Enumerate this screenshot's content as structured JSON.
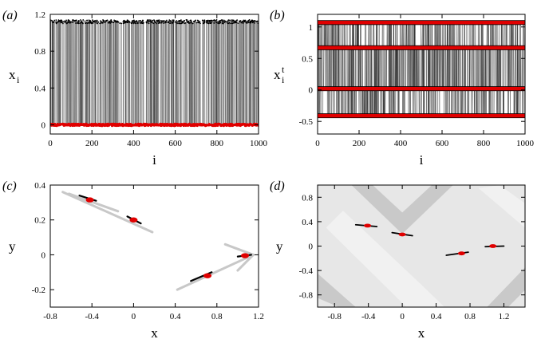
{
  "chart_data": [
    {
      "id": "a",
      "panel_label": "(a)",
      "type": "scatter",
      "xlabel": "i",
      "ylabel": {
        "main": "x",
        "sub": "i"
      },
      "xlim": [
        0,
        1000
      ],
      "ylim": [
        -0.1,
        1.2
      ],
      "xticks": [
        0,
        200,
        400,
        600,
        800,
        1000
      ],
      "xtick_labels": [
        "0",
        "200",
        "400",
        "600",
        "800",
        "1000"
      ],
      "yticks": [
        0,
        0.4,
        0.8,
        1.2
      ],
      "ytick_labels": [
        "0",
        "0.4",
        "0.8",
        "1.2"
      ],
      "series": [
        {
          "name": "upper band",
          "color": "#000000",
          "level": 1.12,
          "spread": 0.04
        },
        {
          "name": "lower band",
          "color": "#e00000",
          "level": 0.0,
          "spread": 0.02
        }
      ],
      "n_points": 1000
    },
    {
      "id": "b",
      "panel_label": "(b)",
      "type": "scatter",
      "xlabel": "i",
      "ylabel": {
        "main": "x",
        "sup": "t",
        "sub": "i"
      },
      "xlim": [
        0,
        1000
      ],
      "ylim": [
        -0.7,
        1.2
      ],
      "xticks": [
        0,
        200,
        400,
        600,
        800,
        1000
      ],
      "xtick_labels": [
        "0",
        "200",
        "400",
        "600",
        "800",
        "1000"
      ],
      "yticks": [
        -0.5,
        0,
        0.5,
        1
      ],
      "ytick_labels": [
        "-0.5",
        "0",
        "0.5",
        "1"
      ],
      "levels": [
        1.07,
        0.67,
        0.02,
        -0.41
      ],
      "band_color": "#e00000",
      "n_points": 1000
    },
    {
      "id": "c",
      "panel_label": "(c)",
      "type": "scatter",
      "xlabel": "x",
      "ylabel": "y",
      "xlim": [
        -0.8,
        1.2
      ],
      "ylim": [
        -0.3,
        0.4
      ],
      "xticks": [
        -0.8,
        -0.4,
        0,
        0.4,
        0.8,
        1.2
      ],
      "xtick_labels": [
        "-0.8",
        "-0.4",
        "0",
        "0.4",
        "0.8",
        "1.2"
      ],
      "yticks": [
        -0.2,
        0,
        0.2,
        0.4
      ],
      "ytick_labels": [
        "-0.2",
        "0",
        "0.2",
        "0.4"
      ],
      "gray_lines": [
        [
          [
            -0.68,
            0.36
          ],
          [
            0.18,
            0.13
          ]
        ],
        [
          [
            -0.62,
            0.35
          ],
          [
            -0.15,
            0.25
          ]
        ],
        [
          [
            0.42,
            -0.2
          ],
          [
            1.15,
            0.0
          ]
        ],
        [
          [
            0.88,
            0.06
          ],
          [
            1.15,
            0.0
          ]
        ],
        [
          [
            1.0,
            -0.09
          ],
          [
            1.15,
            0.0
          ]
        ]
      ],
      "black_segments": [
        [
          [
            -0.52,
            0.34
          ],
          [
            -0.36,
            0.31
          ]
        ],
        [
          [
            -0.06,
            0.22
          ],
          [
            0.07,
            0.18
          ]
        ],
        [
          [
            0.55,
            -0.15
          ],
          [
            0.75,
            -0.1
          ]
        ],
        [
          [
            1.0,
            -0.01
          ],
          [
            1.13,
            0.0
          ]
        ]
      ],
      "red_clusters": [
        {
          "x": -0.42,
          "y": 0.315
        },
        {
          "x": 0.0,
          "y": 0.2
        },
        {
          "x": 0.71,
          "y": -0.12
        },
        {
          "x": 1.07,
          "y": -0.005
        }
      ]
    },
    {
      "id": "d",
      "panel_label": "(d)",
      "type": "scatter",
      "xlabel": "x",
      "ylabel": "y",
      "xlim": [
        -1.0,
        1.45
      ],
      "ylim": [
        -1.0,
        1.0
      ],
      "xticks": [
        -0.8,
        -0.4,
        0,
        0.4,
        0.8,
        1.2
      ],
      "xtick_labels": [
        "-0.8",
        "-0.4",
        "0",
        "0.4",
        "0.8",
        "1.2"
      ],
      "yticks": [
        -0.8,
        -0.4,
        0,
        0.4,
        0.8
      ],
      "ytick_labels": [
        "-0.8",
        "-0.4",
        "0",
        "0.4",
        "0.8"
      ],
      "background_colors": [
        "#e7e7e7",
        "#c9c9c9",
        "#f1f1f1"
      ],
      "black_segments": [
        [
          [
            -0.55,
            0.35
          ],
          [
            -0.3,
            0.32
          ]
        ],
        [
          [
            -0.12,
            0.22
          ],
          [
            0.12,
            0.17
          ]
        ],
        [
          [
            0.52,
            -0.15
          ],
          [
            0.78,
            -0.1
          ]
        ],
        [
          [
            0.98,
            -0.01
          ],
          [
            1.2,
            0.0
          ]
        ]
      ],
      "red_clusters": [
        {
          "x": -0.41,
          "y": 0.335
        },
        {
          "x": 0.0,
          "y": 0.19
        },
        {
          "x": 0.7,
          "y": -0.12
        },
        {
          "x": 1.07,
          "y": 0.0
        }
      ]
    }
  ]
}
